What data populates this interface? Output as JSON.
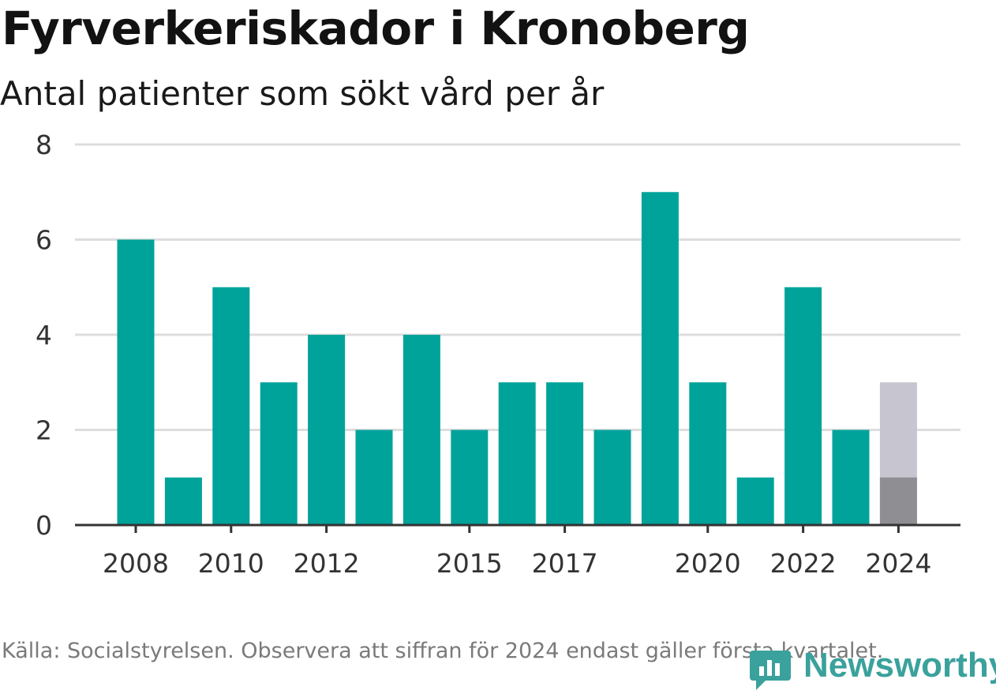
{
  "title": "Fyrverkeriskador i Kronoberg",
  "subtitle": "Antal patienter som sökt vård per år",
  "footer": "Källa: Socialstyrelsen. Observera att siffran för 2024 endast gäller första kvartalet.",
  "logo_text": "Newsworthy",
  "colors": {
    "bar": "#00a39a",
    "partial_total": "#c6c5d0",
    "partial_known": "#8e8e93",
    "grid": "#dddddd",
    "axis": "#333333",
    "logo": "#3aa19c"
  },
  "chart_data": {
    "type": "bar",
    "categories": [
      "2008",
      "2009",
      "2010",
      "2011",
      "2012",
      "2013",
      "2014",
      "2015",
      "2016",
      "2017",
      "2018",
      "2019",
      "2020",
      "2021",
      "2022",
      "2023",
      "2024"
    ],
    "values": [
      6,
      1,
      5,
      3,
      4,
      2,
      4,
      2,
      3,
      3,
      2,
      7,
      3,
      1,
      5,
      2,
      1
    ],
    "partial_estimate": {
      "category": "2024",
      "value": 3
    },
    "xtick_labels": [
      "2008",
      "2010",
      "2012",
      "2015",
      "2017",
      "2020",
      "2022",
      "2024"
    ],
    "yticks": [
      0,
      2,
      4,
      6,
      8
    ],
    "ylim": [
      0,
      8
    ],
    "grid": true,
    "title": "Fyrverkeriskador i Kronoberg",
    "subtitle": "Antal patienter som sökt vård per år",
    "xlabel": "",
    "ylabel": ""
  }
}
